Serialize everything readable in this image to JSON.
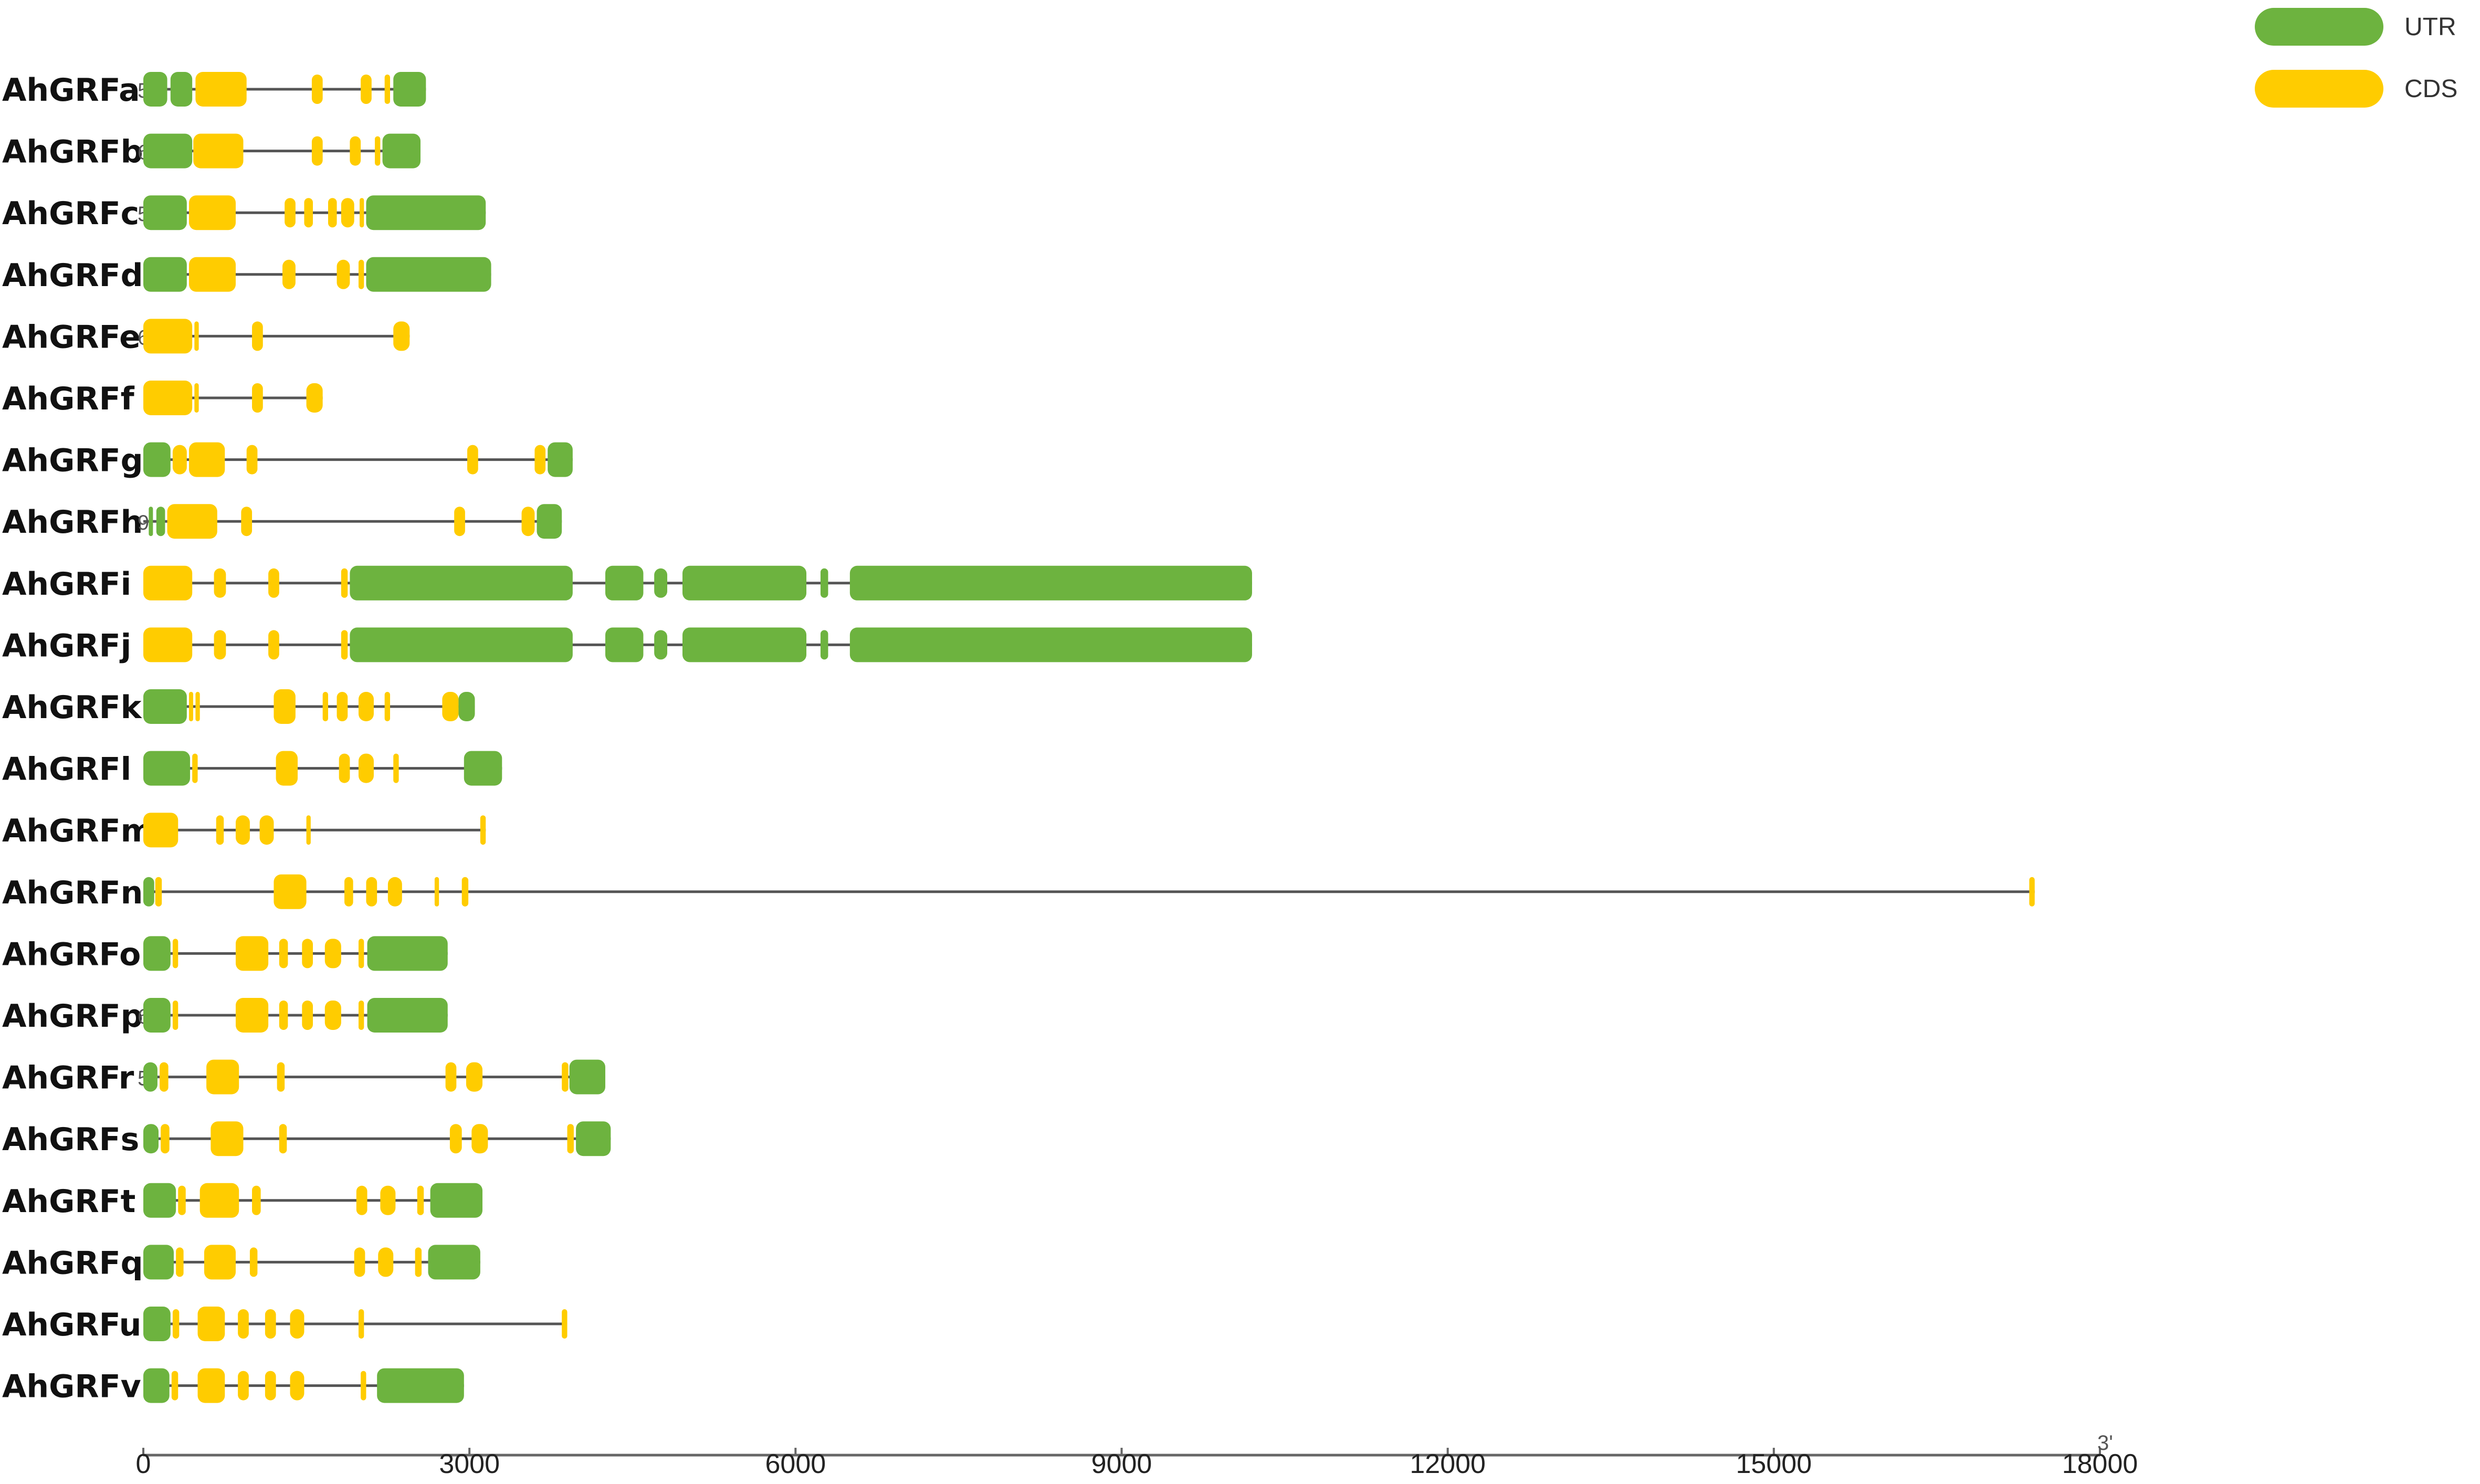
{
  "legend": [
    {
      "label": "UTR",
      "color": "#6DB33F"
    },
    {
      "label": "CDS",
      "color": "#FFCC00"
    }
  ],
  "axis": {
    "min": 0,
    "max": 18000,
    "ticks": [
      0,
      3000,
      6000,
      9000,
      12000,
      15000,
      18000
    ],
    "tick_labels": [
      "0",
      "3000",
      "6000",
      "9000",
      "12000",
      "15000",
      "18000"
    ],
    "end_marker": "3'"
  },
  "genes": [
    {
      "name": "AhGRFa",
      "start_marker": "5",
      "length": 2600,
      "segments": [
        {
          "t": "U",
          "s": 0,
          "e": 220
        },
        {
          "t": "U",
          "s": 250,
          "e": 450
        },
        {
          "t": "C",
          "s": 480,
          "e": 950
        },
        {
          "t": "C",
          "s": 1550,
          "e": 1650
        },
        {
          "t": "C",
          "s": 2000,
          "e": 2100
        },
        {
          "t": "C",
          "s": 2220,
          "e": 2270
        },
        {
          "t": "U",
          "s": 2300,
          "e": 2600
        }
      ]
    },
    {
      "name": "AhGRFb",
      "start_marker": "6",
      "length": 2550,
      "segments": [
        {
          "t": "U",
          "s": 0,
          "e": 450
        },
        {
          "t": "C",
          "s": 460,
          "e": 920
        },
        {
          "t": "C",
          "s": 1550,
          "e": 1650
        },
        {
          "t": "C",
          "s": 1900,
          "e": 2000
        },
        {
          "t": "C",
          "s": 2130,
          "e": 2180
        },
        {
          "t": "U",
          "s": 2200,
          "e": 2550
        }
      ]
    },
    {
      "name": "AhGRFc",
      "start_marker": "5",
      "length": 3150,
      "segments": [
        {
          "t": "U",
          "s": 0,
          "e": 400
        },
        {
          "t": "C",
          "s": 420,
          "e": 850
        },
        {
          "t": "C",
          "s": 1300,
          "e": 1400
        },
        {
          "t": "C",
          "s": 1480,
          "e": 1560
        },
        {
          "t": "C",
          "s": 1700,
          "e": 1780
        },
        {
          "t": "C",
          "s": 1820,
          "e": 1940
        },
        {
          "t": "C",
          "s": 1990,
          "e": 2030
        },
        {
          "t": "U",
          "s": 2050,
          "e": 3150
        }
      ]
    },
    {
      "name": "AhGRFd",
      "start_marker": "",
      "length": 3200,
      "segments": [
        {
          "t": "U",
          "s": 0,
          "e": 400
        },
        {
          "t": "C",
          "s": 420,
          "e": 850
        },
        {
          "t": "C",
          "s": 1280,
          "e": 1400
        },
        {
          "t": "C",
          "s": 1780,
          "e": 1900
        },
        {
          "t": "C",
          "s": 1980,
          "e": 2030
        },
        {
          "t": "U",
          "s": 2050,
          "e": 3200
        }
      ]
    },
    {
      "name": "AhGRFe",
      "start_marker": "6",
      "length": 2450,
      "segments": [
        {
          "t": "C",
          "s": 0,
          "e": 450
        },
        {
          "t": "C",
          "s": 470,
          "e": 510
        },
        {
          "t": "C",
          "s": 1000,
          "e": 1100
        },
        {
          "t": "C",
          "s": 2300,
          "e": 2450
        }
      ]
    },
    {
      "name": "AhGRFf",
      "start_marker": "",
      "length": 1650,
      "segments": [
        {
          "t": "C",
          "s": 0,
          "e": 450
        },
        {
          "t": "C",
          "s": 470,
          "e": 510
        },
        {
          "t": "C",
          "s": 1000,
          "e": 1100
        },
        {
          "t": "C",
          "s": 1500,
          "e": 1650
        }
      ]
    },
    {
      "name": "AhGRFg",
      "start_marker": "",
      "length": 3950,
      "segments": [
        {
          "t": "U",
          "s": 0,
          "e": 250
        },
        {
          "t": "C",
          "s": 270,
          "e": 400
        },
        {
          "t": "C",
          "s": 420,
          "e": 750
        },
        {
          "t": "C",
          "s": 950,
          "e": 1050
        },
        {
          "t": "C",
          "s": 2980,
          "e": 3080
        },
        {
          "t": "C",
          "s": 3600,
          "e": 3700
        },
        {
          "t": "U",
          "s": 3720,
          "e": 3950
        }
      ]
    },
    {
      "name": "AhGRFh",
      "start_marker": "9",
      "length": 3850,
      "segments": [
        {
          "t": "U",
          "s": 50,
          "e": 80
        },
        {
          "t": "U",
          "s": 120,
          "e": 200
        },
        {
          "t": "C",
          "s": 220,
          "e": 680
        },
        {
          "t": "C",
          "s": 900,
          "e": 1000
        },
        {
          "t": "C",
          "s": 2860,
          "e": 2960
        },
        {
          "t": "C",
          "s": 3480,
          "e": 3600
        },
        {
          "t": "U",
          "s": 3620,
          "e": 3850
        }
      ]
    },
    {
      "name": "AhGRFi",
      "start_marker": "",
      "length": 10200,
      "segments": [
        {
          "t": "C",
          "s": 0,
          "e": 450
        },
        {
          "t": "C",
          "s": 650,
          "e": 760
        },
        {
          "t": "C",
          "s": 1150,
          "e": 1250
        },
        {
          "t": "C",
          "s": 1820,
          "e": 1880
        },
        {
          "t": "U",
          "s": 1900,
          "e": 3950
        },
        {
          "t": "U",
          "s": 4250,
          "e": 4600
        },
        {
          "t": "U",
          "s": 4700,
          "e": 4820
        },
        {
          "t": "U",
          "s": 4960,
          "e": 6100
        },
        {
          "t": "U",
          "s": 6230,
          "e": 6300
        },
        {
          "t": "U",
          "s": 6500,
          "e": 10200
        }
      ]
    },
    {
      "name": "AhGRFj",
      "start_marker": "",
      "length": 10200,
      "segments": [
        {
          "t": "C",
          "s": 0,
          "e": 450
        },
        {
          "t": "C",
          "s": 650,
          "e": 760
        },
        {
          "t": "C",
          "s": 1150,
          "e": 1250
        },
        {
          "t": "C",
          "s": 1820,
          "e": 1880
        },
        {
          "t": "U",
          "s": 1900,
          "e": 3950
        },
        {
          "t": "U",
          "s": 4250,
          "e": 4600
        },
        {
          "t": "U",
          "s": 4700,
          "e": 4820
        },
        {
          "t": "U",
          "s": 4960,
          "e": 6100
        },
        {
          "t": "U",
          "s": 6230,
          "e": 6300
        },
        {
          "t": "U",
          "s": 6500,
          "e": 10200
        }
      ]
    },
    {
      "name": "AhGRFk",
      "start_marker": "",
      "length": 3050,
      "segments": [
        {
          "t": "U",
          "s": 0,
          "e": 400
        },
        {
          "t": "C",
          "s": 420,
          "e": 450
        },
        {
          "t": "C",
          "s": 480,
          "e": 520
        },
        {
          "t": "C",
          "s": 1200,
          "e": 1400
        },
        {
          "t": "C",
          "s": 1650,
          "e": 1700
        },
        {
          "t": "C",
          "s": 1780,
          "e": 1880
        },
        {
          "t": "C",
          "s": 1980,
          "e": 2120
        },
        {
          "t": "C",
          "s": 2220,
          "e": 2270
        },
        {
          "t": "C",
          "s": 2750,
          "e": 2900
        },
        {
          "t": "U",
          "s": 2900,
          "e": 3050
        }
      ]
    },
    {
      "name": "AhGRFl",
      "start_marker": "",
      "length": 3300,
      "segments": [
        {
          "t": "U",
          "s": 0,
          "e": 430
        },
        {
          "t": "C",
          "s": 450,
          "e": 500
        },
        {
          "t": "C",
          "s": 1220,
          "e": 1420
        },
        {
          "t": "C",
          "s": 1800,
          "e": 1900
        },
        {
          "t": "C",
          "s": 1980,
          "e": 2120
        },
        {
          "t": "C",
          "s": 2300,
          "e": 2350
        },
        {
          "t": "U",
          "s": 2950,
          "e": 3300
        }
      ]
    },
    {
      "name": "AhGRFm",
      "start_marker": "",
      "length": 3150,
      "segments": [
        {
          "t": "C",
          "s": 0,
          "e": 320
        },
        {
          "t": "C",
          "s": 670,
          "e": 740
        },
        {
          "t": "C",
          "s": 850,
          "e": 980
        },
        {
          "t": "C",
          "s": 1070,
          "e": 1200
        },
        {
          "t": "C",
          "s": 1500,
          "e": 1540
        },
        {
          "t": "C",
          "s": 3100,
          "e": 3150
        }
      ]
    },
    {
      "name": "AhGRFn",
      "start_marker": "",
      "length": 17400,
      "segments": [
        {
          "t": "U",
          "s": 0,
          "e": 100
        },
        {
          "t": "C",
          "s": 110,
          "e": 170
        },
        {
          "t": "C",
          "s": 1200,
          "e": 1500
        },
        {
          "t": "C",
          "s": 1850,
          "e": 1930
        },
        {
          "t": "C",
          "s": 2050,
          "e": 2150
        },
        {
          "t": "C",
          "s": 2250,
          "e": 2380
        },
        {
          "t": "C",
          "s": 2680,
          "e": 2720
        },
        {
          "t": "C",
          "s": 2930,
          "e": 2990
        },
        {
          "t": "C",
          "s": 17350,
          "e": 17400
        }
      ]
    },
    {
      "name": "AhGRFo",
      "start_marker": "",
      "length": 2800,
      "segments": [
        {
          "t": "U",
          "s": 0,
          "e": 250
        },
        {
          "t": "C",
          "s": 270,
          "e": 320
        },
        {
          "t": "C",
          "s": 850,
          "e": 1150
        },
        {
          "t": "C",
          "s": 1250,
          "e": 1330
        },
        {
          "t": "C",
          "s": 1460,
          "e": 1560
        },
        {
          "t": "C",
          "s": 1670,
          "e": 1820
        },
        {
          "t": "C",
          "s": 1980,
          "e": 2030
        },
        {
          "t": "U",
          "s": 2060,
          "e": 2800
        }
      ]
    },
    {
      "name": "AhGRFp",
      "start_marker": "6",
      "length": 2800,
      "segments": [
        {
          "t": "U",
          "s": 0,
          "e": 250
        },
        {
          "t": "C",
          "s": 270,
          "e": 320
        },
        {
          "t": "C",
          "s": 850,
          "e": 1150
        },
        {
          "t": "C",
          "s": 1250,
          "e": 1330
        },
        {
          "t": "C",
          "s": 1460,
          "e": 1560
        },
        {
          "t": "C",
          "s": 1670,
          "e": 1820
        },
        {
          "t": "C",
          "s": 1980,
          "e": 2030
        },
        {
          "t": "U",
          "s": 2060,
          "e": 2800
        }
      ]
    },
    {
      "name": "AhGRFr",
      "start_marker": "5",
      "length": 4250,
      "segments": [
        {
          "t": "U",
          "s": 0,
          "e": 130
        },
        {
          "t": "C",
          "s": 150,
          "e": 230
        },
        {
          "t": "C",
          "s": 580,
          "e": 880
        },
        {
          "t": "C",
          "s": 1230,
          "e": 1300
        },
        {
          "t": "C",
          "s": 2780,
          "e": 2880
        },
        {
          "t": "C",
          "s": 2970,
          "e": 3120
        },
        {
          "t": "C",
          "s": 3850,
          "e": 3910
        },
        {
          "t": "U",
          "s": 3920,
          "e": 4250
        }
      ]
    },
    {
      "name": "AhGRFs",
      "start_marker": "",
      "length": 4300,
      "segments": [
        {
          "t": "U",
          "s": 0,
          "e": 140
        },
        {
          "t": "C",
          "s": 160,
          "e": 240
        },
        {
          "t": "C",
          "s": 620,
          "e": 920
        },
        {
          "t": "C",
          "s": 1250,
          "e": 1320
        },
        {
          "t": "C",
          "s": 2820,
          "e": 2930
        },
        {
          "t": "C",
          "s": 3020,
          "e": 3170
        },
        {
          "t": "C",
          "s": 3900,
          "e": 3960
        },
        {
          "t": "U",
          "s": 3980,
          "e": 4300
        }
      ]
    },
    {
      "name": "AhGRFt",
      "start_marker": "",
      "length": 3120,
      "segments": [
        {
          "t": "U",
          "s": 0,
          "e": 300
        },
        {
          "t": "C",
          "s": 320,
          "e": 390
        },
        {
          "t": "C",
          "s": 520,
          "e": 880
        },
        {
          "t": "C",
          "s": 1000,
          "e": 1080
        },
        {
          "t": "C",
          "s": 1960,
          "e": 2060
        },
        {
          "t": "C",
          "s": 2180,
          "e": 2320
        },
        {
          "t": "C",
          "s": 2520,
          "e": 2580
        },
        {
          "t": "U",
          "s": 2640,
          "e": 3120
        }
      ]
    },
    {
      "name": "AhGRFq",
      "start_marker": "",
      "length": 3100,
      "segments": [
        {
          "t": "U",
          "s": 0,
          "e": 280
        },
        {
          "t": "C",
          "s": 300,
          "e": 370
        },
        {
          "t": "C",
          "s": 560,
          "e": 850
        },
        {
          "t": "C",
          "s": 980,
          "e": 1050
        },
        {
          "t": "C",
          "s": 1940,
          "e": 2040
        },
        {
          "t": "C",
          "s": 2160,
          "e": 2300
        },
        {
          "t": "C",
          "s": 2500,
          "e": 2560
        },
        {
          "t": "U",
          "s": 2620,
          "e": 3100
        }
      ]
    },
    {
      "name": "AhGRFu",
      "start_marker": "",
      "length": 3900,
      "segments": [
        {
          "t": "U",
          "s": 0,
          "e": 250
        },
        {
          "t": "C",
          "s": 270,
          "e": 330
        },
        {
          "t": "C",
          "s": 500,
          "e": 750
        },
        {
          "t": "C",
          "s": 870,
          "e": 970
        },
        {
          "t": "C",
          "s": 1120,
          "e": 1220
        },
        {
          "t": "C",
          "s": 1350,
          "e": 1480
        },
        {
          "t": "C",
          "s": 1980,
          "e": 2030
        },
        {
          "t": "C",
          "s": 3850,
          "e": 3900
        }
      ]
    },
    {
      "name": "AhGRFv",
      "start_marker": "",
      "length": 2950,
      "segments": [
        {
          "t": "U",
          "s": 0,
          "e": 240
        },
        {
          "t": "C",
          "s": 260,
          "e": 320
        },
        {
          "t": "C",
          "s": 500,
          "e": 750
        },
        {
          "t": "C",
          "s": 870,
          "e": 970
        },
        {
          "t": "C",
          "s": 1120,
          "e": 1220
        },
        {
          "t": "C",
          "s": 1350,
          "e": 1480
        },
        {
          "t": "C",
          "s": 2000,
          "e": 2050
        },
        {
          "t": "U",
          "s": 2150,
          "e": 2950
        }
      ]
    }
  ]
}
